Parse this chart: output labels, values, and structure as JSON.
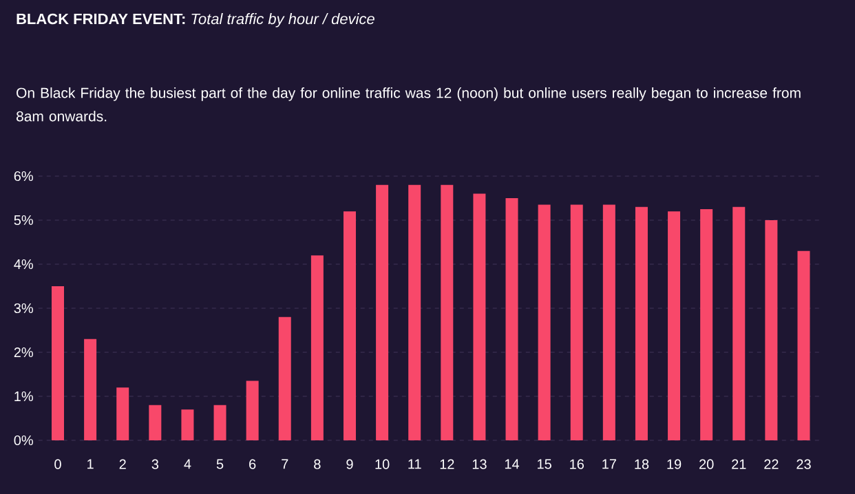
{
  "chart_data": {
    "type": "bar",
    "title": "**BLACK FRIDAY EVENT:** *Total traffic by hour / device*",
    "subtitle": "On Black Friday the busiest part of the day for online traffic was 12 (noon) but online users really began to increase from 8am onwards.",
    "categories": [
      "0",
      "1",
      "2",
      "3",
      "4",
      "5",
      "6",
      "7",
      "8",
      "9",
      "10",
      "11",
      "12",
      "13",
      "14",
      "15",
      "16",
      "17",
      "18",
      "19",
      "20",
      "21",
      "22",
      "23"
    ],
    "values": [
      3.5,
      2.3,
      1.2,
      0.8,
      0.7,
      0.8,
      1.35,
      2.8,
      4.2,
      5.2,
      5.8,
      5.8,
      5.8,
      5.6,
      5.5,
      5.35,
      5.35,
      5.35,
      5.3,
      5.2,
      5.25,
      5.3,
      5.0,
      4.3
    ],
    "color": "#f8486a",
    "ylim": [
      0,
      6
    ],
    "yticks": [
      {
        "value": 0,
        "label": "0%"
      },
      {
        "value": 1,
        "label": "1%"
      },
      {
        "value": 2,
        "label": "2%"
      },
      {
        "value": 3,
        "label": "3%"
      },
      {
        "value": 4,
        "label": "4%"
      },
      {
        "value": 5,
        "label": "5%"
      },
      {
        "value": 6,
        "label": "6%"
      }
    ],
    "grid": "y"
  }
}
